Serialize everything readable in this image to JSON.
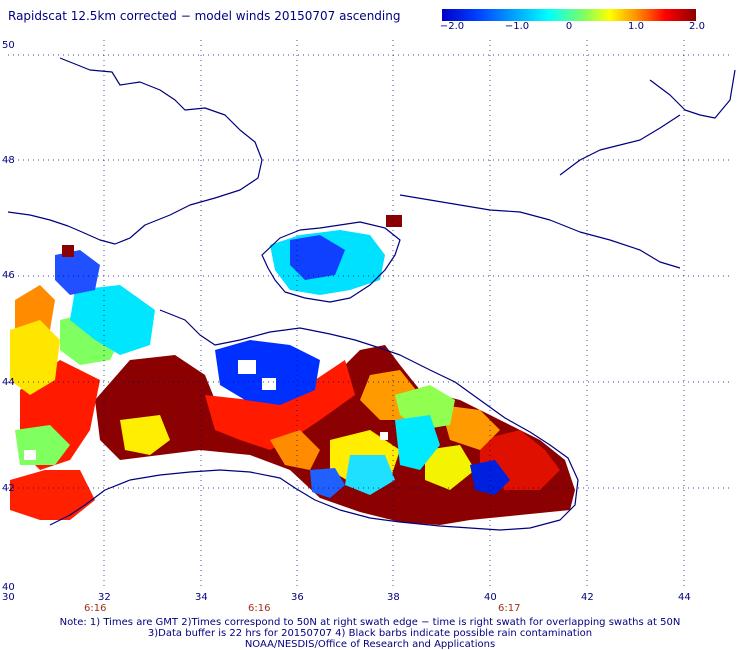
{
  "title": "Rapidscat 12.5km corrected − model winds 20150707 ascending",
  "colorbar": {
    "labels": [
      "−2.0",
      "−1.0",
      "0",
      "1.0",
      "2.0"
    ],
    "colors": [
      "#0000c8",
      "#00a0ff",
      "#00ffff",
      "#80ff80",
      "#ffff00",
      "#ff8000",
      "#ff0000",
      "#8b0000"
    ]
  },
  "axes": {
    "lat_labels": [
      "50",
      "48",
      "46",
      "44",
      "42",
      "40"
    ],
    "lon_labels": [
      "30",
      "32",
      "34",
      "36",
      "38",
      "40",
      "42",
      "44"
    ],
    "time_labels": [
      "6:16",
      "6:16",
      "6:17"
    ]
  },
  "colors": {
    "coastline": "#000080",
    "grid": "#000080",
    "text": "#000080",
    "time_text": "#a0301a"
  },
  "notes": [
    "Note: 1) Times are GMT 2)Times correspond to 50N at right swath edge − time is right swath for overlapping swaths at 50N",
    "3)Data buffer is 22 hrs for 20150707 4) Black barbs indicate possible rain contamination",
    "NOAA/NESDIS/Office of Research and Applications"
  ]
}
